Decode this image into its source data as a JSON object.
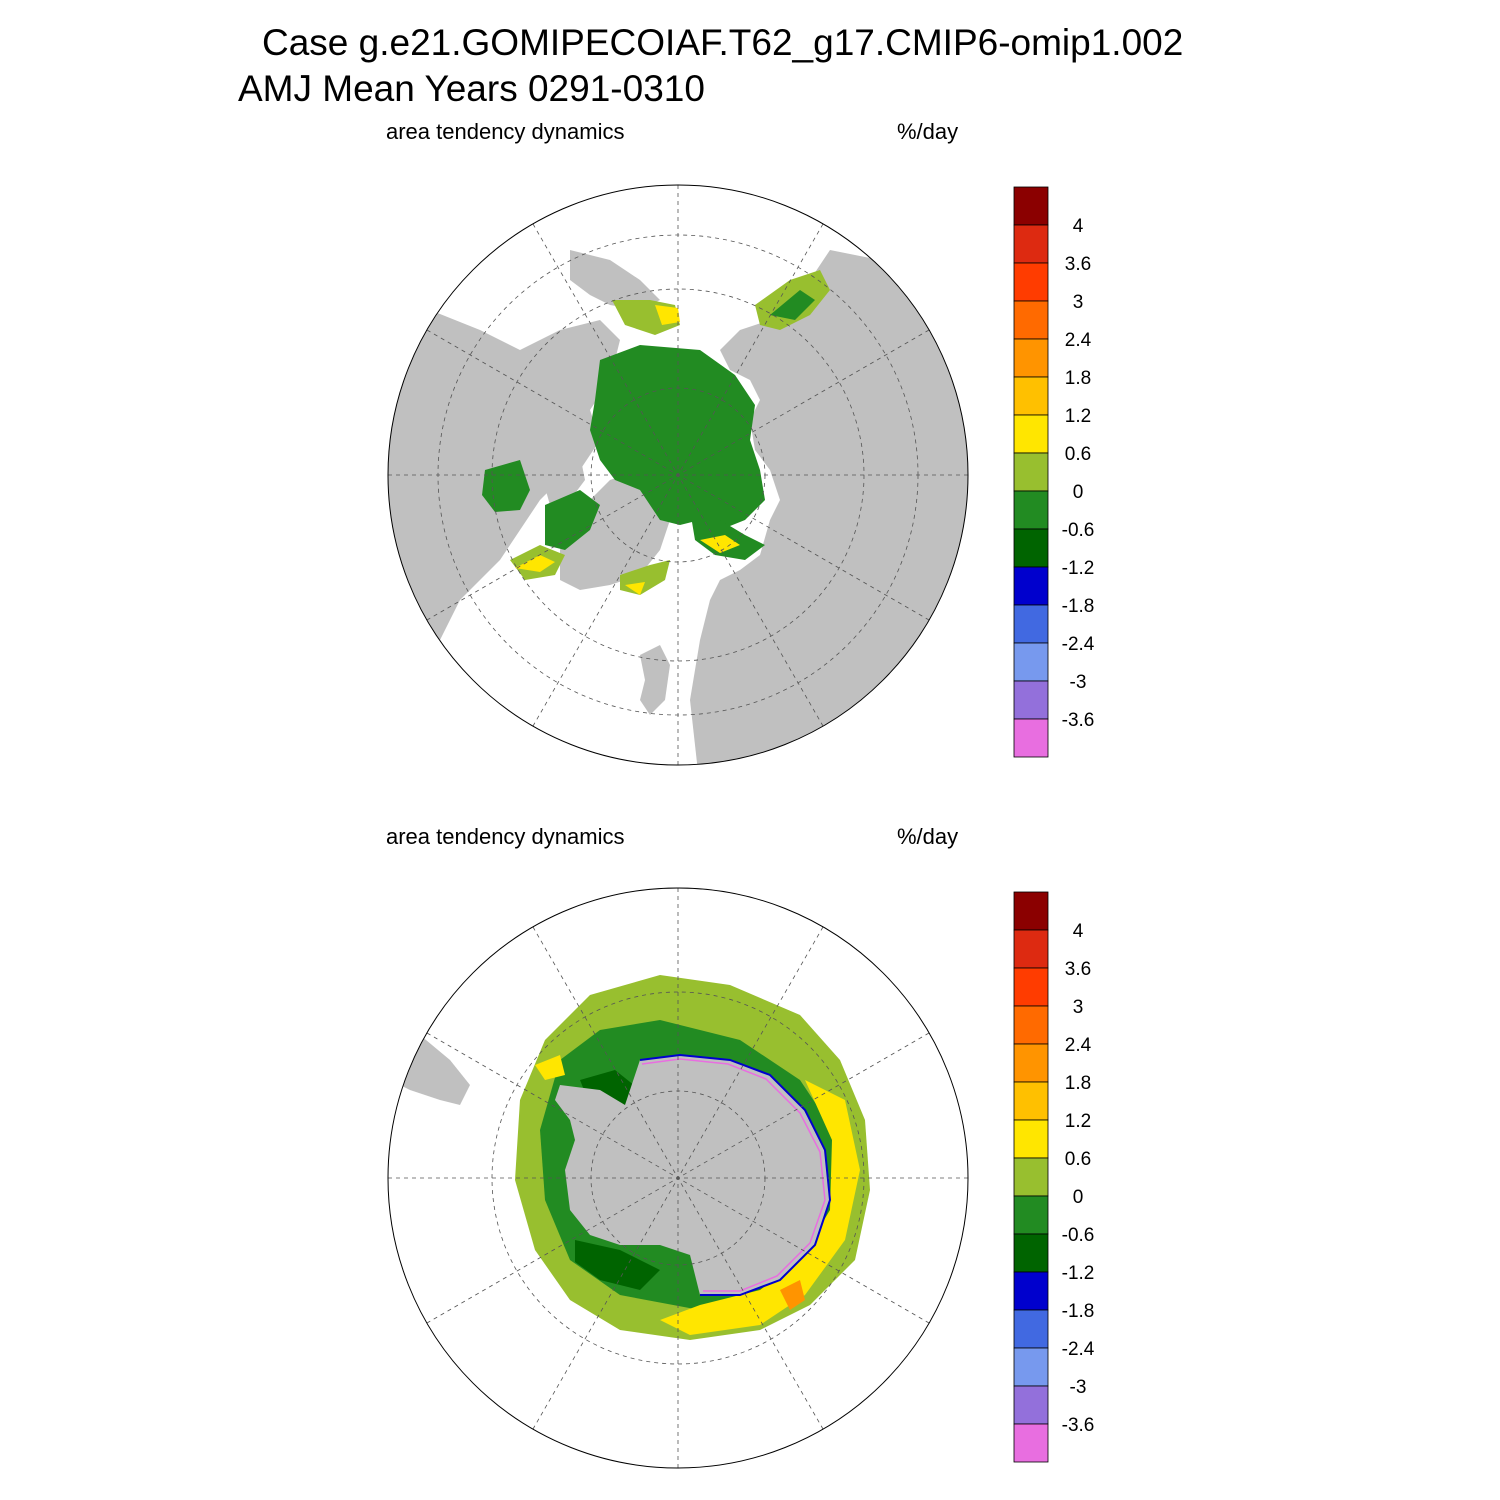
{
  "title": {
    "line1": "Case g.e21.GOMIPECOIAF.T62_g17.CMIP6-omip1.002",
    "line2": "AMJ Mean   Years 0291-0310"
  },
  "panels": [
    {
      "id": "north",
      "hemisphere": "Arctic (north polar stereographic)",
      "variable_label": "area tendency dynamics",
      "units_label": "%/day"
    },
    {
      "id": "south",
      "hemisphere": "Antarctic (south polar stereographic)",
      "variable_label": "area tendency dynamics",
      "units_label": "%/day"
    }
  ],
  "colorbar": {
    "labels": [
      "4",
      "3.6",
      "3",
      "2.4",
      "1.8",
      "1.2",
      "0.6",
      "0",
      "-0.6",
      "-1.2",
      "-1.8",
      "-2.4",
      "-3",
      "-3.6"
    ],
    "colors": [
      "#8b0000",
      "#dd2a11",
      "#ff3c00",
      "#ff6a00",
      "#ff9400",
      "#ffc000",
      "#ffe600",
      "#98bf2f",
      "#228b22",
      "#006400",
      "#0000cd",
      "#4169e1",
      "#7799ee",
      "#9370db",
      "#e86ee0"
    ]
  },
  "colors": {
    "land": "#c0c0c0",
    "ocean": "#ffffff",
    "ice_dark_green": "#006400",
    "ice_green": "#228b22",
    "ice_light_green": "#98bf2f",
    "ice_yellow": "#ffe600",
    "ice_orange": "#ffc000",
    "ice_red_orange": "#ff9400",
    "edge_blue": "#0000cd",
    "edge_magenta": "#e86ee0"
  }
}
